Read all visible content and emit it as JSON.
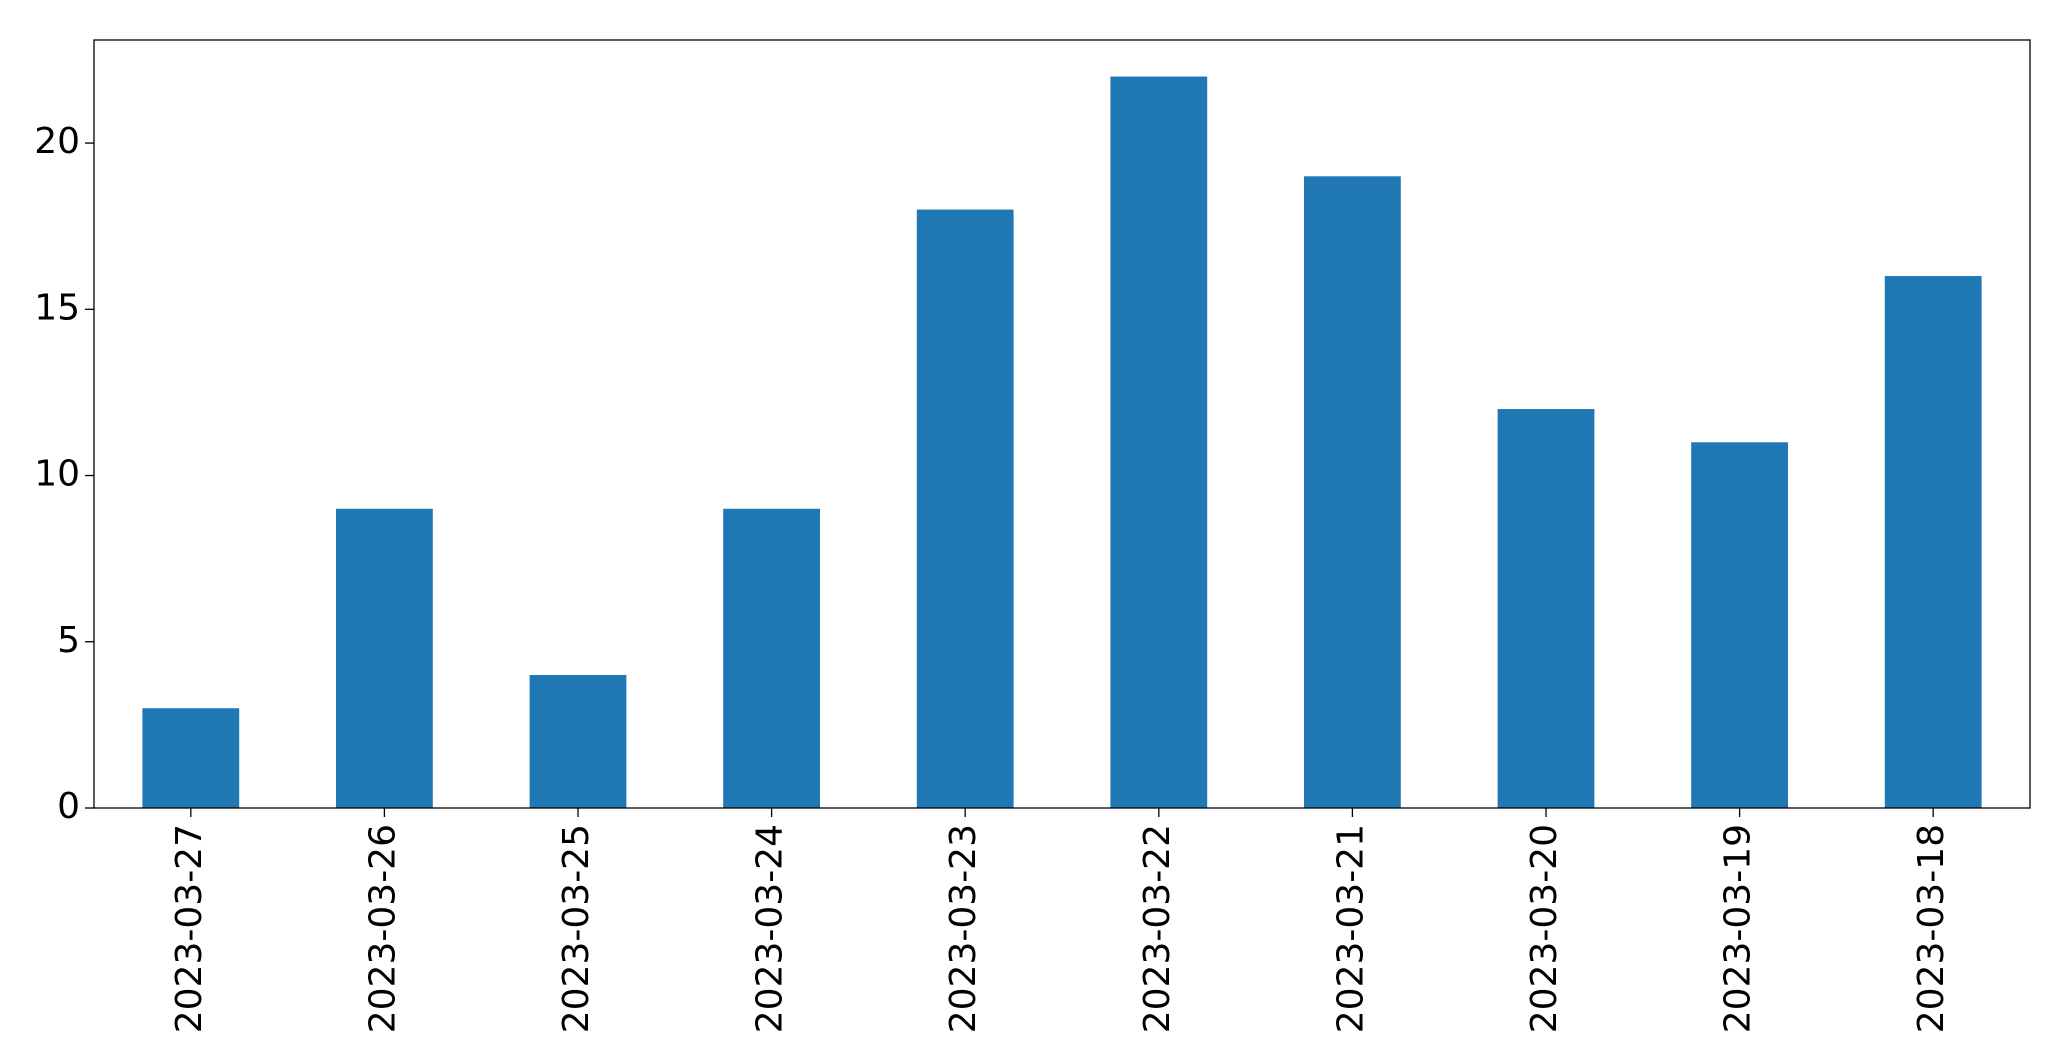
{
  "chart_data": {
    "type": "bar",
    "categories": [
      "2023-03-27",
      "2023-03-26",
      "2023-03-25",
      "2023-03-24",
      "2023-03-23",
      "2023-03-22",
      "2023-03-21",
      "2023-03-20",
      "2023-03-19",
      "2023-03-18"
    ],
    "values": [
      3,
      9,
      4,
      9,
      18,
      22,
      19,
      12,
      11,
      16
    ],
    "color": "#1f77b4",
    "ylim": [
      0,
      23.1
    ],
    "yticks": [
      0,
      5,
      10,
      15,
      20
    ],
    "grid": false
  }
}
